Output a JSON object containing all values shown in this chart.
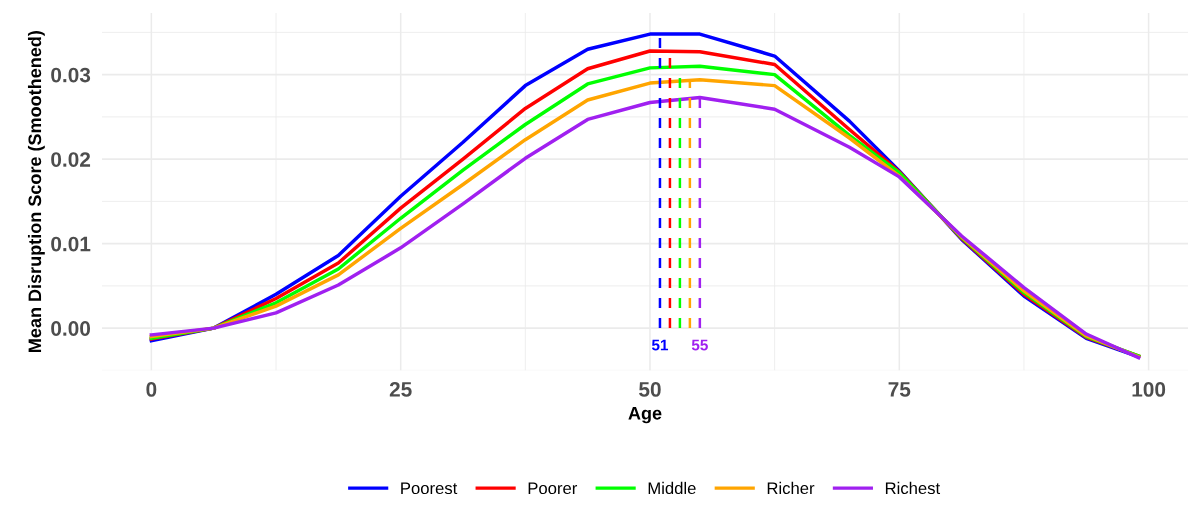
{
  "chart_data": {
    "type": "line",
    "xlabel": "Age",
    "ylabel": "Mean Disruption Score (Smoothened)",
    "x": [
      0,
      6.25,
      12.5,
      18.75,
      25,
      31.25,
      37.5,
      43.75,
      50,
      55,
      62.5,
      70,
      75,
      81.25,
      87.5,
      93.75,
      99
    ],
    "series": [
      {
        "name": "Poorest",
        "color": "#0000ff",
        "values": [
          -0.0015,
          0.0,
          0.004,
          0.0086,
          0.0156,
          0.022,
          0.0287,
          0.033,
          0.0348,
          0.0348,
          0.0322,
          0.0245,
          0.0186,
          0.0105,
          0.0038,
          -0.0012,
          -0.0034
        ]
      },
      {
        "name": "Poorer",
        "color": "#ff0000",
        "values": [
          -0.0013,
          0.0,
          0.0035,
          0.0077,
          0.0142,
          0.02,
          0.026,
          0.0307,
          0.0328,
          0.0327,
          0.0312,
          0.0235,
          0.0185,
          0.0106,
          0.004,
          -0.0011,
          -0.0033
        ]
      },
      {
        "name": "Middle",
        "color": "#00ff00",
        "values": [
          -0.0012,
          0.0,
          0.003,
          0.007,
          0.013,
          0.0187,
          0.0241,
          0.0289,
          0.0308,
          0.031,
          0.03,
          0.0228,
          0.0184,
          0.0107,
          0.0042,
          -0.001,
          -0.0033
        ]
      },
      {
        "name": "Richer",
        "color": "#ffa500",
        "values": [
          -0.001,
          0.0,
          0.0026,
          0.0063,
          0.0118,
          0.017,
          0.0223,
          0.027,
          0.029,
          0.0294,
          0.0287,
          0.0225,
          0.018,
          0.0108,
          0.0044,
          -0.0009,
          -0.0034
        ]
      },
      {
        "name": "Richest",
        "color": "#a020f0",
        "values": [
          -0.0008,
          0.0,
          0.0018,
          0.0051,
          0.0095,
          0.0147,
          0.0201,
          0.0247,
          0.0267,
          0.0273,
          0.0259,
          0.0214,
          0.0179,
          0.0109,
          0.0048,
          -0.0007,
          -0.0035
        ]
      }
    ],
    "ref_lines": [
      {
        "axis": "x",
        "value": 51,
        "label": "51",
        "color": "#0000ff",
        "line_style": "dashed"
      },
      {
        "axis": "x",
        "value": 52,
        "label": null,
        "color": "#ff0000",
        "line_style": "dashed"
      },
      {
        "axis": "x",
        "value": 53,
        "label": null,
        "color": "#00ff00",
        "line_style": "dashed"
      },
      {
        "axis": "x",
        "value": 54,
        "label": null,
        "color": "#ffa500",
        "line_style": "dashed"
      },
      {
        "axis": "x",
        "value": 55,
        "label": "55",
        "color": "#a020f0",
        "line_style": "dashed"
      }
    ],
    "xlim": [
      -4.95,
      103.95
    ],
    "xticks": [
      0,
      25,
      50,
      75,
      100
    ],
    "ylim": [
      -0.005,
      0.0373
    ],
    "yticks": [
      {
        "value": 0,
        "label": "0.00"
      },
      {
        "value": 0.01,
        "label": "0.01"
      },
      {
        "value": 0.02,
        "label": "0.02"
      },
      {
        "value": 0.03,
        "label": "0.03"
      }
    ],
    "grid": true,
    "legend": "bottom",
    "marker": "none",
    "line_style": "solid"
  }
}
